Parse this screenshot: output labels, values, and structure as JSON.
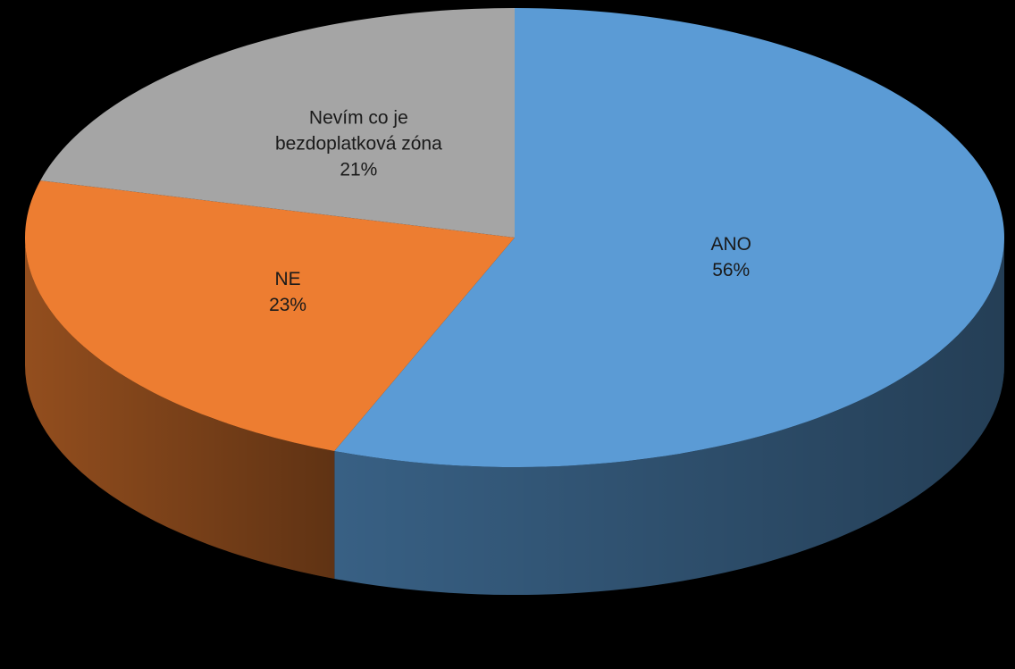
{
  "chart_data": {
    "type": "pie",
    "style": "3d",
    "title": "",
    "legend": "none",
    "slices": [
      {
        "label": "ANO",
        "value": 56,
        "percent_label": "56%",
        "color": "#5B9BD5",
        "label_color": "#1a1a1a",
        "label_lines": [
          "ANO"
        ]
      },
      {
        "label": "NE",
        "value": 23,
        "percent_label": "23%",
        "color": "#ED7D31",
        "label_color": "#1a1a1a",
        "label_lines": [
          "NE"
        ]
      },
      {
        "label": "Nevím co je bezdoplatková zóna",
        "value": 21,
        "percent_label": "21%",
        "color": "#A5A5A5",
        "label_color": "#1a1a1a",
        "label_lines": [
          "Nevím co je",
          "bezdoplatková zóna"
        ]
      }
    ]
  }
}
